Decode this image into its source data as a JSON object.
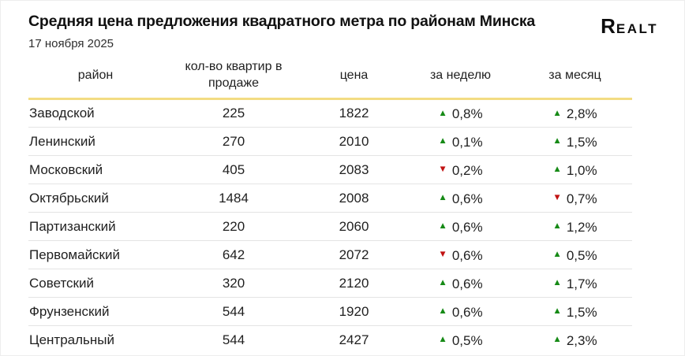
{
  "header": {
    "title": "Средняя цена предложения квадратного метра по районам Минска",
    "date": "17 ноября 2025",
    "logo_text": "Realt"
  },
  "icons": {
    "up_arrow": "▲",
    "down_arrow": "▼"
  },
  "colors": {
    "up_green": "#168a16",
    "down_red": "#c11212",
    "header_underline_yellow": "#f3dc83",
    "row_divider": "#e4e4e4",
    "text": "#1c1c1c"
  },
  "chart_data": {
    "type": "table",
    "title": "Средняя цена предложения квадратного метра по районам Минска",
    "subtitle": "17 ноября 2025",
    "columns": [
      "район",
      "кол-во квартир в продаже",
      "цена",
      "за неделю",
      "за месяц"
    ],
    "rows": [
      {
        "district": "Заводской",
        "count": 225,
        "price": 1822,
        "week": {
          "dir": "up",
          "value": "0,8%"
        },
        "month": {
          "dir": "up",
          "value": "2,8%"
        }
      },
      {
        "district": "Ленинский",
        "count": 270,
        "price": 2010,
        "week": {
          "dir": "up",
          "value": "0,1%"
        },
        "month": {
          "dir": "up",
          "value": "1,5%"
        }
      },
      {
        "district": "Московский",
        "count": 405,
        "price": 2083,
        "week": {
          "dir": "down",
          "value": "0,2%"
        },
        "month": {
          "dir": "up",
          "value": "1,0%"
        }
      },
      {
        "district": "Октябрьский",
        "count": 1484,
        "price": 2008,
        "week": {
          "dir": "up",
          "value": "0,6%"
        },
        "month": {
          "dir": "down",
          "value": "0,7%"
        }
      },
      {
        "district": "Партизанский",
        "count": 220,
        "price": 2060,
        "week": {
          "dir": "up",
          "value": "0,6%"
        },
        "month": {
          "dir": "up",
          "value": "1,2%"
        }
      },
      {
        "district": "Первомайский",
        "count": 642,
        "price": 2072,
        "week": {
          "dir": "down",
          "value": "0,6%"
        },
        "month": {
          "dir": "up",
          "value": "0,5%"
        }
      },
      {
        "district": "Советский",
        "count": 320,
        "price": 2120,
        "week": {
          "dir": "up",
          "value": "0,6%"
        },
        "month": {
          "dir": "up",
          "value": "1,7%"
        }
      },
      {
        "district": "Фрунзенский",
        "count": 544,
        "price": 1920,
        "week": {
          "dir": "up",
          "value": "0,6%"
        },
        "month": {
          "dir": "up",
          "value": "1,5%"
        }
      },
      {
        "district": "Центральный",
        "count": 544,
        "price": 2427,
        "week": {
          "dir": "up",
          "value": "0,5%"
        },
        "month": {
          "dir": "up",
          "value": "2,3%"
        }
      }
    ]
  }
}
